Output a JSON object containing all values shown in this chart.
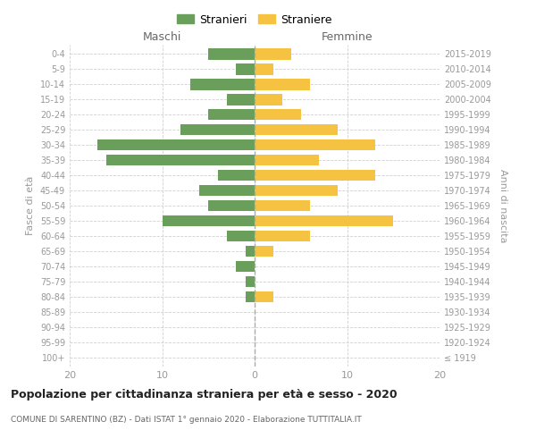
{
  "age_groups": [
    "100+",
    "95-99",
    "90-94",
    "85-89",
    "80-84",
    "75-79",
    "70-74",
    "65-69",
    "60-64",
    "55-59",
    "50-54",
    "45-49",
    "40-44",
    "35-39",
    "30-34",
    "25-29",
    "20-24",
    "15-19",
    "10-14",
    "5-9",
    "0-4"
  ],
  "birth_years": [
    "≤ 1919",
    "1920-1924",
    "1925-1929",
    "1930-1934",
    "1935-1939",
    "1940-1944",
    "1945-1949",
    "1950-1954",
    "1955-1959",
    "1960-1964",
    "1965-1969",
    "1970-1974",
    "1975-1979",
    "1980-1984",
    "1985-1989",
    "1990-1994",
    "1995-1999",
    "2000-2004",
    "2005-2009",
    "2010-2014",
    "2015-2019"
  ],
  "maschi": [
    0,
    0,
    0,
    0,
    1,
    1,
    2,
    1,
    3,
    10,
    5,
    6,
    4,
    16,
    17,
    8,
    5,
    3,
    7,
    2,
    5
  ],
  "femmine": [
    0,
    0,
    0,
    0,
    2,
    0,
    0,
    2,
    6,
    15,
    6,
    9,
    13,
    7,
    13,
    9,
    5,
    3,
    6,
    2,
    4
  ],
  "maschi_color": "#6a9e5b",
  "femmine_color": "#f5c242",
  "grid_color": "#d0d0d0",
  "title": "Popolazione per cittadinanza straniera per età e sesso - 2020",
  "subtitle": "COMUNE DI SARENTINO (BZ) - Dati ISTAT 1° gennaio 2020 - Elaborazione TUTTITALIA.IT",
  "xlabel_left": "Maschi",
  "xlabel_right": "Femmine",
  "ylabel_left": "Fasce di età",
  "ylabel_right": "Anni di nascita",
  "legend_maschi": "Stranieri",
  "legend_femmine": "Straniere",
  "xlim": 20,
  "bar_height": 0.75
}
